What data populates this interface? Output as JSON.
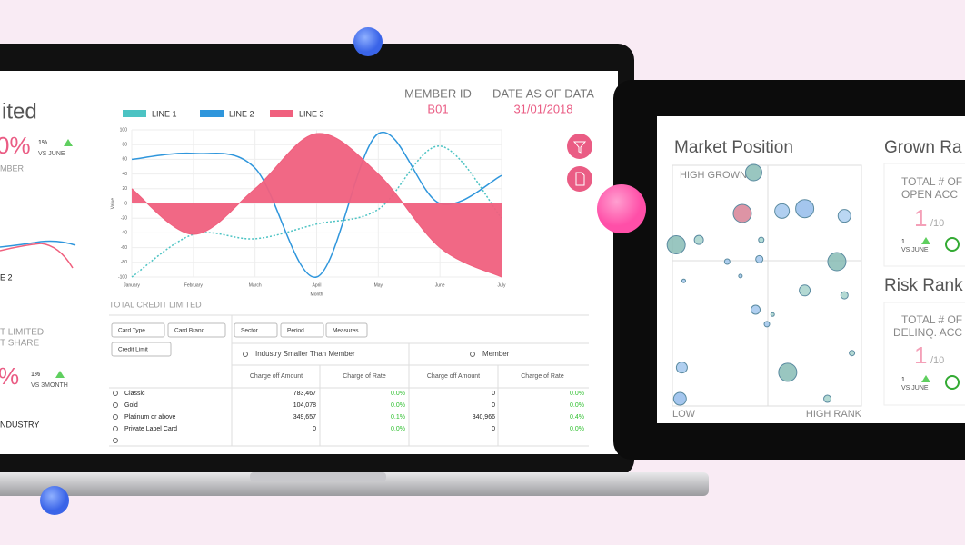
{
  "laptop": {
    "left_panel": {
      "title": "ited",
      "big1": "0%",
      "delta1": "1%",
      "vs1": "VS JUNE",
      "sub1": "MBER",
      "legend_frag": "E 2",
      "label2a": "T LIMITED",
      "label2b": "T SHARE",
      "big2": "%",
      "delta2": "1%",
      "vs2": "VS 3MONTH",
      "industry": "NDUSTRY"
    },
    "header": {
      "member_label": "MEMBER ID",
      "member_value": "B01",
      "date_label": "DATE AS OF DATA",
      "date_value": "31/01/2018"
    },
    "section_title": "TOTAL CREDIT LIMITED",
    "table": {
      "buttons": [
        "Card Type",
        "Card Brand",
        "Credit Limit",
        "Sector",
        "Period",
        "Measures"
      ],
      "groups": [
        "Industry Smaller Than Member",
        "Member"
      ],
      "columns": [
        "Charge off Amount",
        "Charge of Rate",
        "Charge off Amount",
        "Charge of Rate"
      ],
      "rows": [
        [
          "Classic",
          "783,467",
          "0.0%",
          "0",
          "0.0%"
        ],
        [
          "Gold",
          "104,078",
          "0.0%",
          "0",
          "0.0%"
        ],
        [
          "Platinum or above",
          "349,657",
          "0.1%",
          "340,966",
          "0.4%"
        ],
        [
          "Private Label Card",
          "0",
          "0.0%",
          "0",
          "0.0%"
        ]
      ]
    }
  },
  "tablet": {
    "panel1": {
      "title": "Grown Ra",
      "kpi_label1": "TOTAL # OF",
      "kpi_label2": "OPEN ACC",
      "kpi_value": "1",
      "kpi_total": "/10",
      "delta": "1",
      "vs": "VS JUNE"
    },
    "panel2": {
      "title": "Risk Rank",
      "kpi_label1": "TOTAL # OF",
      "kpi_label2": "DELINQ. ACC",
      "kpi_value": "1",
      "kpi_total": "/10",
      "delta": "1",
      "vs": "VS JUNE"
    }
  },
  "chart_data": [
    {
      "type": "line",
      "x_label": "Month",
      "y_label": "Value",
      "categories": [
        "January",
        "February",
        "March",
        "April",
        "May",
        "June",
        "July"
      ],
      "ylim": [
        -100,
        100
      ],
      "yticks": [
        -100,
        -80,
        -60,
        -40,
        -20,
        0,
        20,
        40,
        60,
        80,
        100
      ],
      "grid": true,
      "series": [
        {
          "name": "LINE 1",
          "color": "#4cc3c3",
          "dash": true,
          "values": [
            -100,
            -42,
            -48,
            -28,
            -8,
            78,
            -20
          ]
        },
        {
          "name": "LINE 2",
          "color": "#2f96dc",
          "values": [
            60,
            68,
            48,
            -100,
            95,
            0,
            38
          ]
        },
        {
          "name": "LINE 3",
          "color": "#f0607e",
          "fill": true,
          "values": [
            20,
            -42,
            20,
            95,
            40,
            -60,
            -100
          ]
        }
      ]
    },
    {
      "type": "scatter",
      "title": "Market Position",
      "annotations": [
        "HIGH GROWN",
        "LOW",
        "HIGH RANK"
      ],
      "xlim": [
        0,
        100
      ],
      "ylim": [
        0,
        100
      ],
      "x": [
        43,
        37,
        58,
        70,
        91,
        2,
        14,
        47,
        87,
        46,
        29,
        6,
        36,
        70,
        91,
        44,
        53,
        50,
        95,
        5,
        61,
        4,
        82
      ],
      "values": [
        97,
        80,
        81,
        82,
        79,
        67,
        69,
        69,
        60,
        61,
        60,
        52,
        54,
        48,
        46,
        40,
        38,
        34,
        22,
        16,
        14,
        3,
        3
      ],
      "sizes": [
        9,
        10,
        8,
        10,
        7,
        10,
        5,
        3,
        10,
        4,
        3,
        2,
        2,
        6,
        4,
        5,
        2,
        3,
        3,
        6,
        10,
        7,
        4
      ],
      "colors": [
        "#7fb8b0",
        "#d4798f",
        "#9cc3ec",
        "#8db8ea",
        "#a9cdf0",
        "#7fb8b0",
        "#a0cfc8",
        "#9fd3cc",
        "#7fb8b0",
        "#9cc3ec",
        "#9cc3ec",
        "#9cc3ec",
        "#9cc3ec",
        "#a0cfc8",
        "#a0cfc8",
        "#9cc3ec",
        "#a0cfc8",
        "#9cc3ec",
        "#a0cfc8",
        "#9cc3ec",
        "#7fb8b0",
        "#8db8ea",
        "#a0cfc8"
      ]
    }
  ]
}
